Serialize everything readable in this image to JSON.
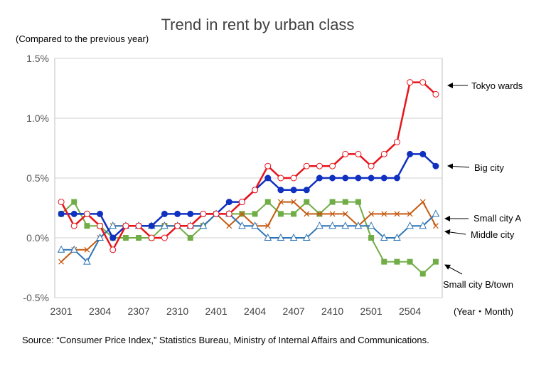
{
  "chart_data": {
    "type": "line",
    "title": "Trend in rent by urban class",
    "subtitle": "(Compared to the previous year)",
    "xlabel": "(Year・Month)",
    "ylabel": "",
    "ylim": [
      -0.5,
      1.5
    ],
    "yticks": [
      "-0.5%",
      "0.0%",
      "0.5%",
      "1.0%",
      "1.5%"
    ],
    "ytick_values": [
      -0.5,
      0.0,
      0.5,
      1.0,
      1.5
    ],
    "x": [
      "2301",
      "2302",
      "2303",
      "2304",
      "2305",
      "2306",
      "2307",
      "2308",
      "2309",
      "2310",
      "2311",
      "2312",
      "2401",
      "2402",
      "2403",
      "2404",
      "2405",
      "2406",
      "2407",
      "2408",
      "2409",
      "2410",
      "2411",
      "2412",
      "2501",
      "2502",
      "2503",
      "2504",
      "2505",
      "2506"
    ],
    "xtick_labels": [
      "2301",
      "2304",
      "2307",
      "2310",
      "2401",
      "2404",
      "2407",
      "2410",
      "2501",
      "2504"
    ],
    "grid": "horizontal",
    "series": [
      {
        "name": "Tokyo wards",
        "color": "#e8141c",
        "marker": "circle-open",
        "values": [
          0.3,
          0.1,
          0.2,
          0.1,
          -0.1,
          0.1,
          0.1,
          0.0,
          0.0,
          0.1,
          0.1,
          0.2,
          0.2,
          0.2,
          0.3,
          0.4,
          0.6,
          0.5,
          0.5,
          0.6,
          0.6,
          0.6,
          0.7,
          0.7,
          0.6,
          0.7,
          0.8,
          1.3,
          1.3,
          1.2
        ]
      },
      {
        "name": "Big city",
        "color": "#1030c0",
        "marker": "circle-filled",
        "values": [
          0.2,
          0.2,
          0.2,
          0.2,
          0.0,
          0.1,
          0.1,
          0.1,
          0.2,
          0.2,
          0.2,
          0.2,
          0.2,
          0.3,
          0.3,
          0.4,
          0.5,
          0.4,
          0.4,
          0.4,
          0.5,
          0.5,
          0.5,
          0.5,
          0.5,
          0.5,
          0.5,
          0.7,
          0.7,
          0.6
        ]
      },
      {
        "name": "Small city A",
        "color": "#2e75b6",
        "marker": "triangle-open",
        "values": [
          -0.1,
          -0.1,
          -0.2,
          0.0,
          0.1,
          0.1,
          0.1,
          0.1,
          0.1,
          0.1,
          0.1,
          0.1,
          0.2,
          0.2,
          0.1,
          0.1,
          0.0,
          0.0,
          0.0,
          0.0,
          0.1,
          0.1,
          0.1,
          0.1,
          0.1,
          0.0,
          0.0,
          0.1,
          0.1,
          0.2
        ]
      },
      {
        "name": "Middle city",
        "color": "#c55a11",
        "marker": "x",
        "values": [
          -0.2,
          -0.1,
          -0.1,
          0.0,
          0.1,
          0.1,
          0.1,
          0.1,
          0.1,
          0.1,
          0.1,
          0.1,
          0.2,
          0.1,
          0.2,
          0.1,
          0.1,
          0.3,
          0.3,
          0.2,
          0.2,
          0.2,
          0.2,
          0.1,
          0.2,
          0.2,
          0.2,
          0.2,
          0.3,
          0.1
        ]
      },
      {
        "name": "Small city B/town",
        "color": "#70ad47",
        "marker": "square-filled",
        "values": [
          0.2,
          0.3,
          0.1,
          0.1,
          0.0,
          0.0,
          0.0,
          0.0,
          0.1,
          0.1,
          0.0,
          0.1,
          0.2,
          0.2,
          0.2,
          0.2,
          0.3,
          0.2,
          0.2,
          0.3,
          0.2,
          0.3,
          0.3,
          0.3,
          0.0,
          -0.2,
          -0.2,
          -0.2,
          -0.3,
          -0.2
        ]
      }
    ]
  },
  "source": "Source: “Consumer Price Index,” Statistics Bureau, Ministry of Internal Affairs and Communications."
}
